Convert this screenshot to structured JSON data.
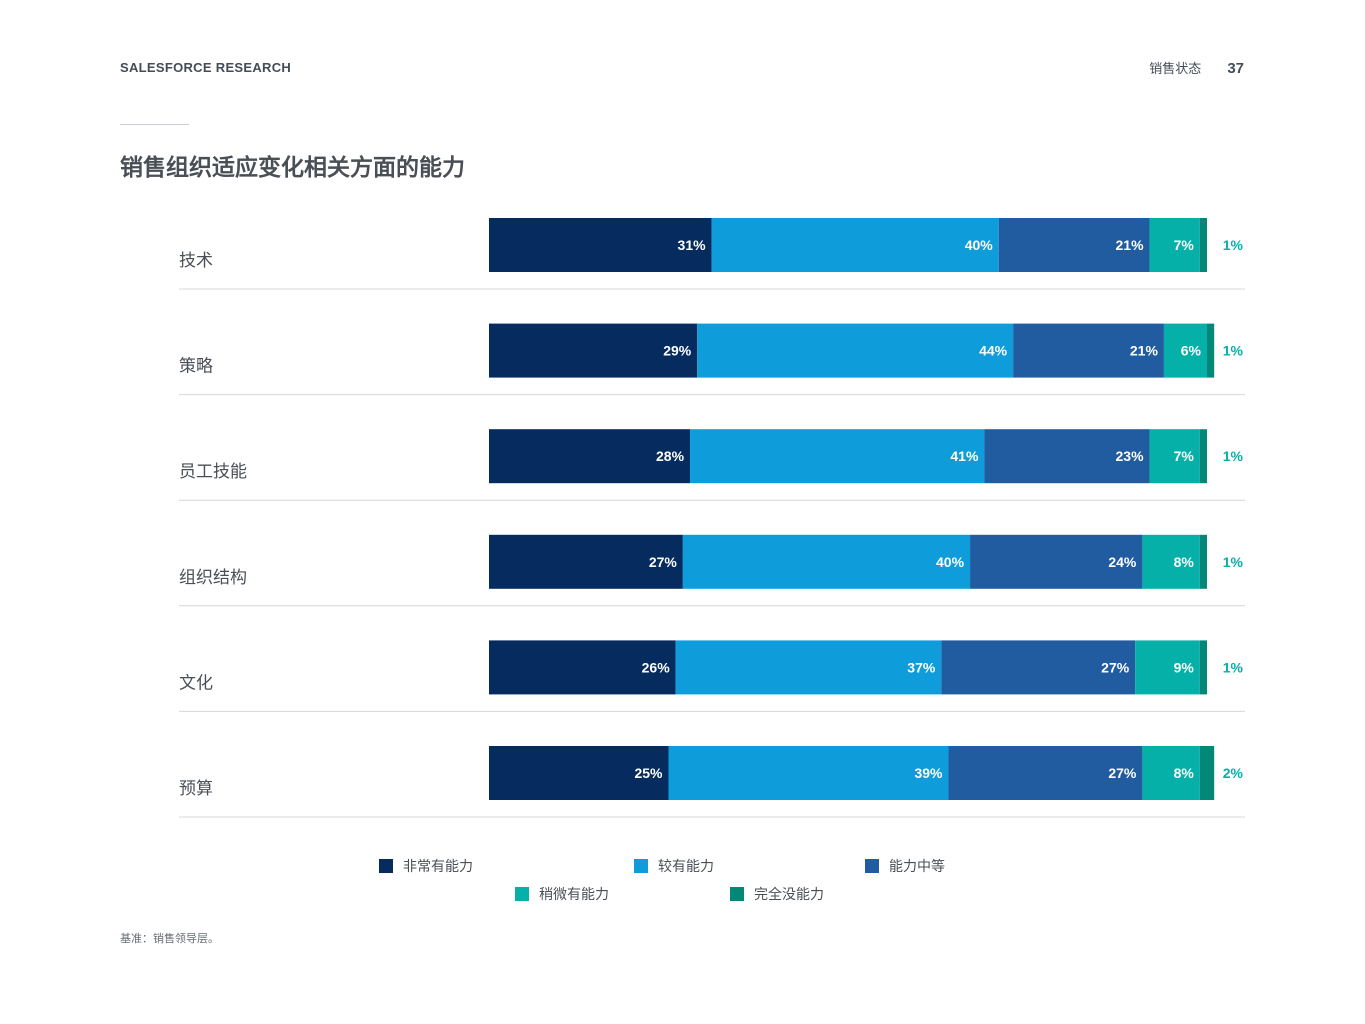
{
  "header": {
    "brand": "SALESFORCE RESEARCH",
    "section": "销售状态",
    "page_number": "37"
  },
  "chart_data": {
    "type": "bar",
    "orientation": "horizontal",
    "stacked": true,
    "title": "销售组织适应变化相关方面的能力",
    "categories": [
      "技术",
      "策略",
      "员工技能",
      "组织结构",
      "文化",
      "预算"
    ],
    "series": [
      {
        "name": "非常有能力",
        "color": "#062c5f",
        "values": [
          31,
          29,
          28,
          27,
          26,
          25
        ]
      },
      {
        "name": "较有能力",
        "color": "#0e9cdb",
        "values": [
          40,
          44,
          41,
          40,
          37,
          39
        ]
      },
      {
        "name": "能力中等",
        "color": "#215ba0",
        "values": [
          21,
          21,
          23,
          24,
          27,
          27
        ]
      },
      {
        "name": "稍微有能力",
        "color": "#05b0a8",
        "values": [
          7,
          6,
          7,
          8,
          9,
          8
        ]
      },
      {
        "name": "完全没能力",
        "color": "#038777",
        "values": [
          1,
          1,
          1,
          1,
          1,
          2
        ]
      }
    ],
    "unit": "%",
    "legend_position": "bottom",
    "grid": false
  },
  "footnote": "基准：销售领导层。"
}
